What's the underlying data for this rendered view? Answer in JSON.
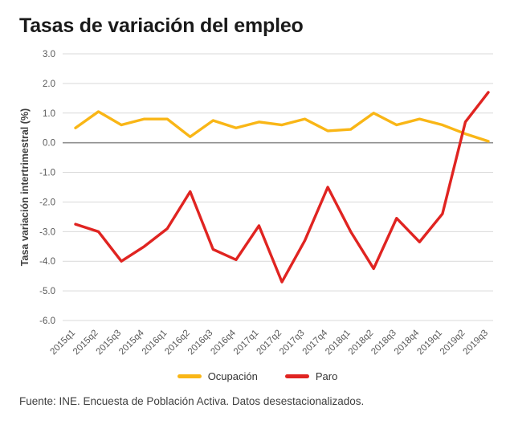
{
  "title": "Tasas de variación del empleo",
  "footer": "Fuente: INE. Encuesta de Población Activa. Datos desestacionalizados.",
  "legend": [
    {
      "label": "Ocupación",
      "color": "#F9B616"
    },
    {
      "label": "Paro",
      "color": "#E02421"
    }
  ],
  "chart_data": {
    "type": "line",
    "title": "Tasas de variación del empleo",
    "xlabel": "",
    "ylabel": "Tasa variación intertrimestral (%)",
    "ylim": [
      -6.0,
      3.0
    ],
    "ytick_step": 1.0,
    "grid": true,
    "legend_position": "bottom",
    "categories": [
      "2015q1",
      "2015q2",
      "2015q3",
      "2015q4",
      "2016q1",
      "2016q2",
      "2016q3",
      "2016q4",
      "2017q1",
      "2017q2",
      "2017q3",
      "2017q4",
      "2018q1",
      "2018q2",
      "2018q3",
      "2018q4",
      "2019q1",
      "2019q2",
      "2019q3"
    ],
    "series": [
      {
        "name": "Ocupación",
        "color": "#F9B616",
        "values": [
          0.5,
          1.05,
          0.6,
          0.8,
          0.8,
          0.2,
          0.75,
          0.5,
          0.7,
          0.6,
          0.8,
          0.4,
          0.45,
          1.0,
          0.6,
          0.8,
          0.6,
          0.3,
          0.05
        ]
      },
      {
        "name": "Paro",
        "color": "#E02421",
        "values": [
          -2.75,
          -3.0,
          -4.0,
          -3.5,
          -2.9,
          -1.65,
          -3.6,
          -3.95,
          -2.8,
          -4.7,
          -3.3,
          -1.5,
          -3.0,
          -4.25,
          -2.55,
          -3.35,
          -2.4,
          0.7,
          1.7
        ]
      }
    ]
  }
}
